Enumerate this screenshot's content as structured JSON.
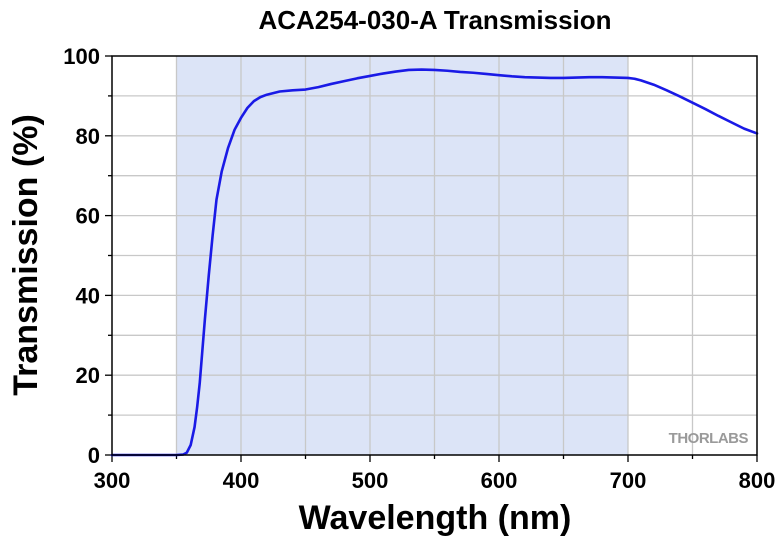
{
  "chart_data": {
    "type": "line",
    "title": "ACA254-030-A Transmission",
    "xlabel": "Wavelength (nm)",
    "ylabel": "Transmission (%)",
    "xlim": [
      300,
      800
    ],
    "ylim": [
      0,
      100
    ],
    "xticks": [
      300,
      400,
      500,
      600,
      700,
      800
    ],
    "yticks": [
      0,
      20,
      40,
      60,
      80,
      100
    ],
    "grid": true,
    "shaded_band": [
      350,
      700
    ],
    "colors": {
      "line": "#1a1ae6",
      "band": "#dce4f7",
      "grid": "#c8c8c8"
    },
    "watermark": "THORLABS",
    "series": [
      {
        "x": [
          300,
          340,
          350,
          355,
          358,
          361,
          364,
          366,
          368,
          370,
          372,
          375,
          378,
          381,
          385,
          390,
          395,
          400,
          405,
          410,
          415,
          420,
          430,
          440,
          450,
          460,
          470,
          480,
          490,
          500,
          510,
          520,
          530,
          540,
          550,
          560,
          570,
          580,
          590,
          600,
          610,
          620,
          630,
          640,
          650,
          660,
          670,
          680,
          690,
          700,
          705,
          710,
          720,
          730,
          740,
          750,
          760,
          770,
          780,
          790,
          800
        ],
        "y": [
          0,
          0,
          0,
          0.1,
          0.6,
          2.5,
          7,
          12,
          18,
          26,
          34,
          45,
          55,
          64,
          71,
          77,
          81.5,
          84.5,
          87,
          88.7,
          89.7,
          90.3,
          91.1,
          91.4,
          91.6,
          92.2,
          93.0,
          93.7,
          94.4,
          95.0,
          95.6,
          96.1,
          96.5,
          96.6,
          96.5,
          96.3,
          96.0,
          95.8,
          95.5,
          95.2,
          94.9,
          94.7,
          94.6,
          94.5,
          94.5,
          94.6,
          94.7,
          94.7,
          94.6,
          94.5,
          94.3,
          93.9,
          92.8,
          91.4,
          89.9,
          88.3,
          86.7,
          85.0,
          83.4,
          81.8,
          80.6
        ]
      }
    ]
  }
}
